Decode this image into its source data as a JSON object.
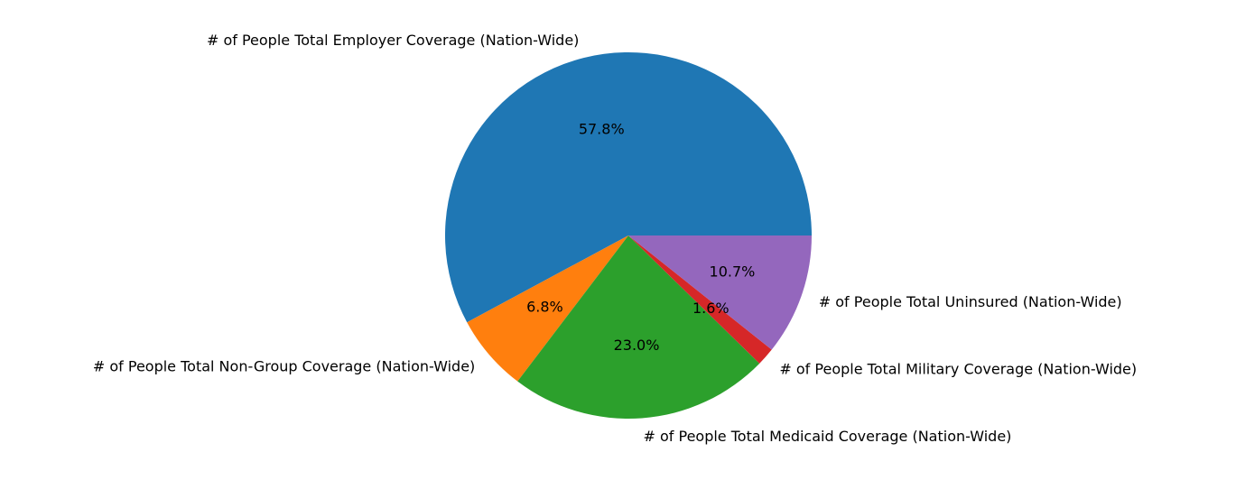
{
  "chart_data": {
    "type": "pie",
    "title": "",
    "start_angle_deg": 0,
    "direction": "counterclockwise",
    "slices": [
      {
        "label": "# of People Total Employer Coverage (Nation-Wide)",
        "value": 57.8,
        "pct_label": "57.8%",
        "color": "#1f77b4"
      },
      {
        "label": "# of People Total Non-Group Coverage (Nation-Wide)",
        "value": 6.8,
        "pct_label": "6.8%",
        "color": "#ff7f0e"
      },
      {
        "label": "# of People Total Medicaid Coverage (Nation-Wide)",
        "value": 23.0,
        "pct_label": "23.0%",
        "color": "#2ca02c"
      },
      {
        "label": "# of People Total Military Coverage (Nation-Wide)",
        "value": 1.6,
        "pct_label": "1.6%",
        "color": "#d62728"
      },
      {
        "label": "# of People Total Uninsured (Nation-Wide)",
        "value": 10.7,
        "pct_label": "10.7%",
        "color": "#9467bd"
      }
    ]
  }
}
